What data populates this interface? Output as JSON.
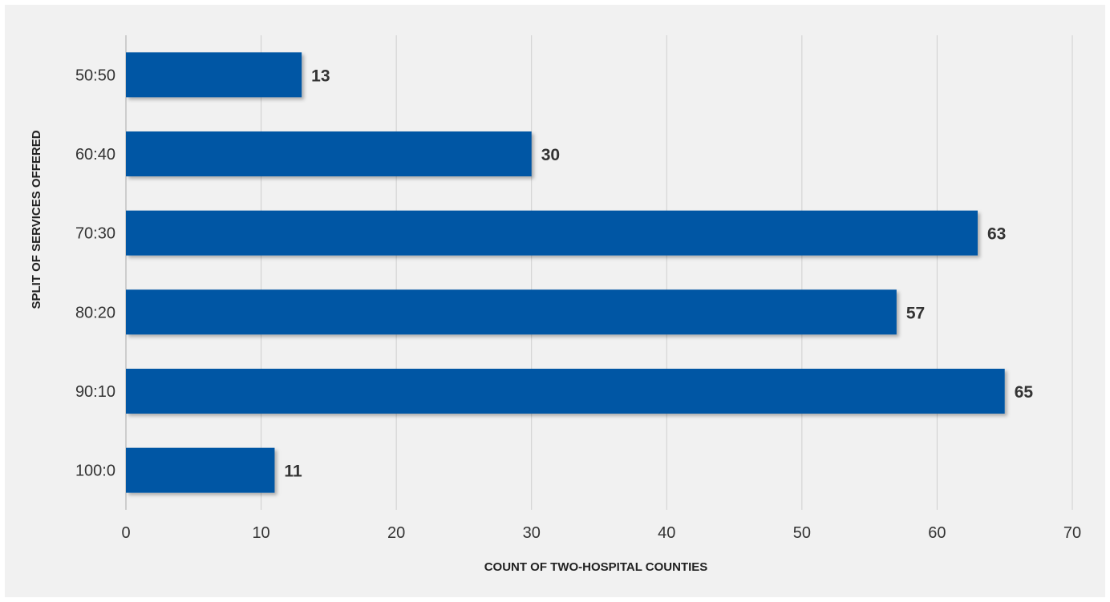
{
  "chart_data": {
    "type": "bar",
    "orientation": "horizontal",
    "categories": [
      "50:50",
      "60:40",
      "70:30",
      "80:20",
      "90:10",
      "100:0"
    ],
    "values": [
      13,
      30,
      63,
      57,
      65,
      11
    ],
    "xlabel": "COUNT OF TWO-HOSPITAL COUNTIES",
    "ylabel": "SPLIT OF SERVICES OFFERED",
    "xlim": [
      0,
      70
    ],
    "xticks": [
      0,
      10,
      20,
      30,
      40,
      50,
      60,
      70
    ],
    "grid": true,
    "bar_color": "#0057a4",
    "data_labels": true
  }
}
